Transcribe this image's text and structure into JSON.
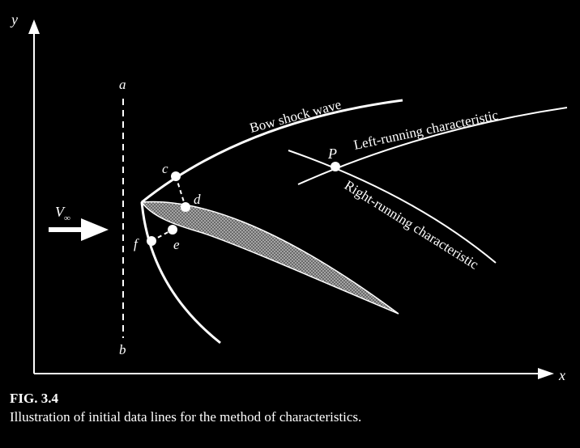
{
  "diagram": {
    "axes": {
      "x_label": "x",
      "y_label": "y"
    },
    "labels": {
      "a": "a",
      "b": "b",
      "c": "c",
      "d": "d",
      "e": "e",
      "f": "f",
      "P": "P",
      "freestream": "V",
      "freestream_sub": "∞",
      "bow_shock": "Bow shock wave",
      "left_running": "Left-running characteristic",
      "right_running": "Right-running characteristic"
    },
    "colors": {
      "background": "#000000",
      "foreground": "#ffffff",
      "body_fill": "#8a8a8a"
    }
  },
  "caption": {
    "label": "FIG. 3.4",
    "text": "Illustration of initial data lines for the method of characteristics."
  }
}
